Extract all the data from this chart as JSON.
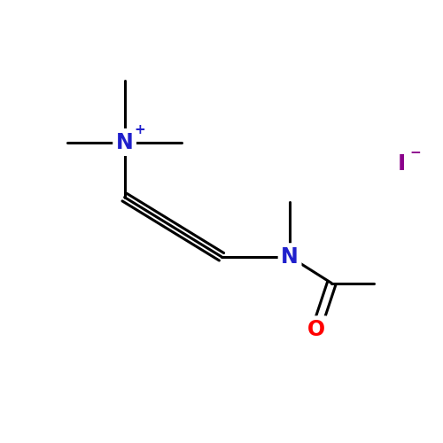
{
  "background": "#ffffff",
  "atom_color_N": "#2020cc",
  "atom_color_O": "#ff0000",
  "atom_color_I": "#8b008b",
  "bond_color": "#000000",
  "bond_width": 2.2,
  "figsize": [
    5.0,
    5.0
  ],
  "dpi": 100,
  "xlim": [
    0,
    10
  ],
  "ylim": [
    0,
    10
  ]
}
